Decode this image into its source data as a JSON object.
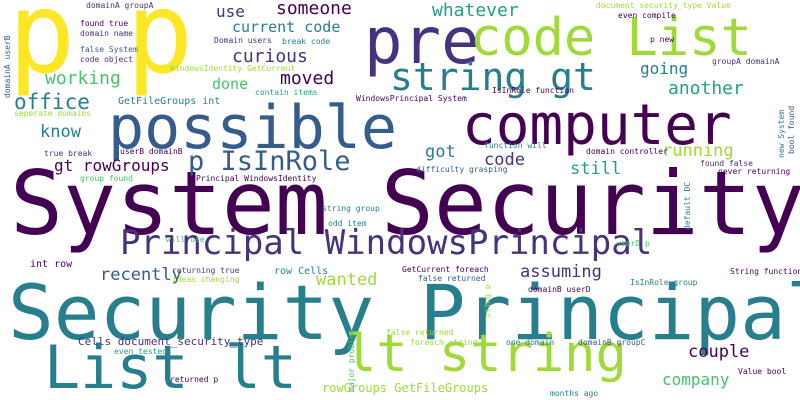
{
  "word_cloud": {
    "background": "#ffffff",
    "palette": {
      "purple": "#440154",
      "indigo": "#46327e",
      "blue": "#365c8d",
      "teal": "#277f8e",
      "sea": "#1fa187",
      "green": "#4ac16d",
      "lime": "#a0da39",
      "yellow": "#fde725"
    },
    "words": [
      {
        "text": "System Security",
        "color": "#440154"
      },
      {
        "text": "Security Principal",
        "color": "#277f8e"
      },
      {
        "text": "p",
        "color": "#fde725"
      },
      {
        "text": "p",
        "color": "#fde725"
      },
      {
        "text": "possible",
        "color": "#365c8d"
      },
      {
        "text": "computer",
        "color": "#440154"
      },
      {
        "text": "pre",
        "color": "#46327e"
      },
      {
        "text": "code List",
        "color": "#a0da39"
      },
      {
        "text": "List lt",
        "color": "#277f8e"
      },
      {
        "text": "lt string",
        "color": "#a0da39"
      },
      {
        "text": "string gt",
        "color": "#277f8e"
      },
      {
        "text": "Principal WindowsPrincipal",
        "color": "#46327e"
      },
      {
        "text": "p IsInRole",
        "color": "#365c8d"
      },
      {
        "text": "office",
        "color": "#277f8e"
      },
      {
        "text": "working",
        "color": "#4ac16d"
      },
      {
        "text": "curious",
        "color": "#46327e"
      },
      {
        "text": "moved",
        "color": "#440154"
      },
      {
        "text": "someone",
        "color": "#440154"
      },
      {
        "text": "whatever",
        "color": "#1fa187"
      },
      {
        "text": "use",
        "color": "#46327e"
      },
      {
        "text": "current code",
        "color": "#277f8e"
      },
      {
        "text": "done",
        "color": "#4ac16d"
      },
      {
        "text": "another",
        "color": "#1fa187"
      },
      {
        "text": "going",
        "color": "#277f8e"
      },
      {
        "text": "running",
        "color": "#a0da39"
      },
      {
        "text": "know",
        "color": "#277f8e"
      },
      {
        "text": "got",
        "color": "#277f8e"
      },
      {
        "text": "code",
        "color": "#46327e"
      },
      {
        "text": "still",
        "color": "#1fa187"
      },
      {
        "text": "gt rowGroups",
        "color": "#440154"
      },
      {
        "text": "recently",
        "color": "#365c8d"
      },
      {
        "text": "wanted",
        "color": "#a0da39"
      },
      {
        "text": "assuming",
        "color": "#46327e"
      },
      {
        "text": "couple",
        "color": "#440154"
      },
      {
        "text": "company",
        "color": "#4ac16d"
      },
      {
        "text": "rowGroups GetFileGroups",
        "color": "#a0da39"
      },
      {
        "text": "Cells document_security_type",
        "color": "#46327e"
      },
      {
        "text": "domainA groupA",
        "color": "#46327e"
      },
      {
        "text": "found true",
        "color": "#440154"
      },
      {
        "text": "domain name",
        "color": "#46327e"
      },
      {
        "text": "false System",
        "color": "#365c8d"
      },
      {
        "text": "code object",
        "color": "#46327e"
      },
      {
        "text": "WindowsIdentity GetCurrent",
        "color": "#a0da39"
      },
      {
        "text": "Domain users",
        "color": "#46327e"
      },
      {
        "text": "break code",
        "color": "#277f8e"
      },
      {
        "text": "domainA userB",
        "color": "#365c8d"
      },
      {
        "text": "contain items",
        "color": "#1fa187"
      },
      {
        "text": "GetFileGroups int",
        "color": "#277f8e"
      },
      {
        "text": "WindowsPrincipal System",
        "color": "#440154"
      },
      {
        "text": "IsInRole function",
        "color": "#440154"
      },
      {
        "text": "seperate domains",
        "color": "#a0da39"
      },
      {
        "text": "true break",
        "color": "#46327e"
      },
      {
        "text": "userB domainB",
        "color": "#440154"
      },
      {
        "text": "group found",
        "color": "#4ac16d"
      },
      {
        "text": "Principal WindowsIdentity",
        "color": "#440154"
      },
      {
        "text": "difficulty grasping",
        "color": "#365c8d"
      },
      {
        "text": "function will",
        "color": "#277f8e"
      },
      {
        "text": "domain controller",
        "color": "#440154"
      },
      {
        "text": "found false",
        "color": "#46327e"
      },
      {
        "text": "never returning",
        "color": "#440154"
      },
      {
        "text": "document_security_type Value",
        "color": "#a0da39"
      },
      {
        "text": "even compile",
        "color": "#440154"
      },
      {
        "text": "p new",
        "color": "#440154"
      },
      {
        "text": "groupA domainA",
        "color": "#46327e"
      },
      {
        "text": "new System",
        "color": "#277f8e"
      },
      {
        "text": "bool found",
        "color": "#365c8d"
      },
      {
        "text": "default DC",
        "color": "#277f8e"
      },
      {
        "text": "string group",
        "color": "#277f8e"
      },
      {
        "text": "odd item",
        "color": "#277f8e"
      },
      {
        "text": "will use",
        "color": "#4ac16d"
      },
      {
        "text": "int row",
        "color": "#440154"
      },
      {
        "text": "returning true",
        "color": "#46327e"
      },
      {
        "text": "ideas changing",
        "color": "#a0da39"
      },
      {
        "text": "row Cells",
        "color": "#277f8e"
      },
      {
        "text": "GetCurrent foreach",
        "color": "#440154"
      },
      {
        "text": "false returned",
        "color": "#365c8d"
      },
      {
        "text": "IsInRole group",
        "color": "#277f8e"
      },
      {
        "text": "domainB userD",
        "color": "#440154"
      },
      {
        "text": "userD p",
        "color": "#4ac16d"
      },
      {
        "text": "String function",
        "color": "#440154"
      },
      {
        "text": "using p",
        "color": "#a0da39"
      },
      {
        "text": "major problem",
        "color": "#4ac16d"
      },
      {
        "text": "false returned",
        "color": "#a0da39"
      },
      {
        "text": "foreach string",
        "color": "#a0da39"
      },
      {
        "text": "one domain",
        "color": "#277f8e"
      },
      {
        "text": "domainB groupC",
        "color": "#365c8d"
      },
      {
        "text": "even tested",
        "color": "#1fa187"
      },
      {
        "text": "returned p",
        "color": "#440154"
      },
      {
        "text": "months ago",
        "color": "#277f8e"
      },
      {
        "text": "Value bool",
        "color": "#440154"
      }
    ]
  }
}
